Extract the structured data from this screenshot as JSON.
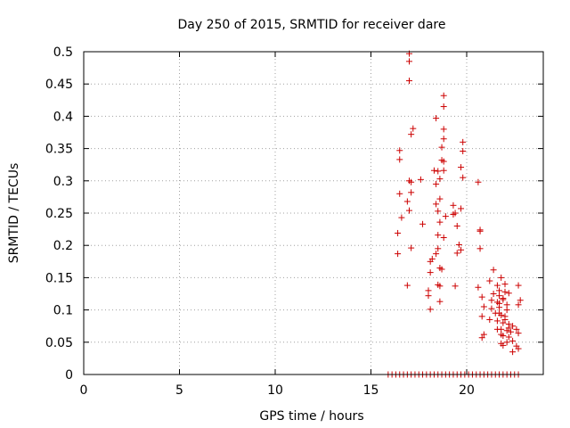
{
  "chart_data": {
    "type": "scatter",
    "title": "Day 250 of 2015, SRMTID for receiver dare",
    "xlabel": "GPS time / hours",
    "ylabel": "SRMTID / TECUs",
    "xlim": [
      0,
      24
    ],
    "ylim": [
      0,
      0.5
    ],
    "grid": true,
    "marker": "plus",
    "series": [
      {
        "name": "SRMTID",
        "color": "#cc0000",
        "points": [
          [
            17.0,
            0.497
          ],
          [
            17.0,
            0.485
          ],
          [
            17.0,
            0.455
          ],
          [
            18.8,
            0.432
          ],
          [
            18.8,
            0.415
          ],
          [
            18.4,
            0.397
          ],
          [
            17.2,
            0.381
          ],
          [
            17.1,
            0.372
          ],
          [
            18.8,
            0.38
          ],
          [
            18.8,
            0.365
          ],
          [
            18.7,
            0.352
          ],
          [
            19.8,
            0.36
          ],
          [
            19.8,
            0.346
          ],
          [
            16.5,
            0.347
          ],
          [
            16.5,
            0.333
          ],
          [
            18.7,
            0.332
          ],
          [
            18.8,
            0.33
          ],
          [
            19.7,
            0.321
          ],
          [
            18.3,
            0.316
          ],
          [
            18.5,
            0.315
          ],
          [
            18.8,
            0.316
          ],
          [
            17.6,
            0.302
          ],
          [
            18.6,
            0.303
          ],
          [
            19.8,
            0.305
          ],
          [
            20.6,
            0.298
          ],
          [
            17.0,
            0.3
          ],
          [
            17.1,
            0.298
          ],
          [
            18.4,
            0.295
          ],
          [
            16.5,
            0.28
          ],
          [
            17.1,
            0.282
          ],
          [
            18.6,
            0.272
          ],
          [
            16.9,
            0.268
          ],
          [
            18.4,
            0.264
          ],
          [
            19.3,
            0.262
          ],
          [
            19.7,
            0.257
          ],
          [
            16.6,
            0.243
          ],
          [
            17.0,
            0.254
          ],
          [
            18.5,
            0.253
          ],
          [
            18.9,
            0.245
          ],
          [
            19.3,
            0.248
          ],
          [
            19.4,
            0.25
          ],
          [
            17.7,
            0.233
          ],
          [
            18.6,
            0.236
          ],
          [
            19.5,
            0.23
          ],
          [
            20.7,
            0.224
          ],
          [
            20.7,
            0.222
          ],
          [
            16.4,
            0.219
          ],
          [
            18.5,
            0.216
          ],
          [
            18.8,
            0.212
          ],
          [
            17.1,
            0.196
          ],
          [
            18.5,
            0.195
          ],
          [
            19.6,
            0.201
          ],
          [
            19.7,
            0.193
          ],
          [
            20.7,
            0.195
          ],
          [
            18.2,
            0.179
          ],
          [
            18.4,
            0.187
          ],
          [
            19.5,
            0.188
          ],
          [
            16.4,
            0.187
          ],
          [
            18.1,
            0.175
          ],
          [
            18.6,
            0.165
          ],
          [
            18.7,
            0.163
          ],
          [
            18.1,
            0.158
          ],
          [
            21.4,
            0.162
          ],
          [
            21.8,
            0.15
          ],
          [
            21.2,
            0.145
          ],
          [
            18.5,
            0.139
          ],
          [
            18.6,
            0.137
          ],
          [
            16.9,
            0.138
          ],
          [
            19.4,
            0.137
          ],
          [
            20.6,
            0.135
          ],
          [
            22.7,
            0.138
          ],
          [
            18.0,
            0.13
          ],
          [
            18.0,
            0.122
          ],
          [
            20.8,
            0.12
          ],
          [
            21.4,
            0.125
          ],
          [
            21.7,
            0.122
          ],
          [
            22.0,
            0.128
          ],
          [
            22.2,
            0.126
          ],
          [
            18.6,
            0.113
          ],
          [
            21.3,
            0.115
          ],
          [
            21.6,
            0.112
          ],
          [
            21.9,
            0.116
          ],
          [
            22.8,
            0.115
          ],
          [
            22.7,
            0.108
          ],
          [
            18.1,
            0.101
          ],
          [
            20.9,
            0.105
          ],
          [
            21.3,
            0.102
          ],
          [
            21.7,
            0.104
          ],
          [
            22.1,
            0.1
          ],
          [
            21.5,
            0.095
          ],
          [
            21.8,
            0.092
          ],
          [
            22.0,
            0.09
          ],
          [
            20.8,
            0.09
          ],
          [
            21.2,
            0.085
          ],
          [
            21.6,
            0.083
          ],
          [
            21.9,
            0.08
          ],
          [
            22.2,
            0.078
          ],
          [
            22.4,
            0.075
          ],
          [
            21.8,
            0.07
          ],
          [
            22.1,
            0.068
          ],
          [
            22.3,
            0.066
          ],
          [
            22.6,
            0.07
          ],
          [
            22.7,
            0.064
          ],
          [
            21.9,
            0.06
          ],
          [
            22.2,
            0.058
          ],
          [
            20.8,
            0.057
          ],
          [
            20.9,
            0.062
          ],
          [
            22.1,
            0.05
          ],
          [
            22.4,
            0.052
          ],
          [
            21.9,
            0.045
          ],
          [
            22.6,
            0.044
          ],
          [
            22.7,
            0.04
          ],
          [
            21.8,
            0.048
          ],
          [
            22.4,
            0.035
          ],
          [
            21.7,
            0.11
          ],
          [
            21.7,
            0.095
          ],
          [
            22.1,
            0.108
          ],
          [
            21.9,
            0.118
          ],
          [
            22.0,
            0.085
          ],
          [
            21.6,
            0.07
          ],
          [
            21.8,
            0.062
          ],
          [
            22.2,
            0.072
          ],
          [
            21.6,
            0.138
          ],
          [
            22.0,
            0.14
          ],
          [
            21.7,
            0.13
          ],
          [
            15.9,
            0.0
          ],
          [
            16.1,
            0.0
          ],
          [
            16.3,
            0.0
          ],
          [
            16.5,
            0.0
          ],
          [
            16.7,
            0.0
          ],
          [
            16.9,
            0.0
          ],
          [
            17.1,
            0.0
          ],
          [
            17.3,
            0.0
          ],
          [
            17.5,
            0.0
          ],
          [
            17.7,
            0.0
          ],
          [
            17.9,
            0.0
          ],
          [
            18.1,
            0.0
          ],
          [
            18.3,
            0.0
          ],
          [
            18.5,
            0.0
          ],
          [
            18.7,
            0.0
          ],
          [
            18.9,
            0.0
          ],
          [
            19.1,
            0.0
          ],
          [
            19.3,
            0.0
          ],
          [
            19.5,
            0.0
          ],
          [
            19.7,
            0.0
          ],
          [
            19.9,
            0.0
          ],
          [
            20.1,
            0.0
          ],
          [
            20.3,
            0.0
          ],
          [
            20.5,
            0.0
          ],
          [
            20.7,
            0.0
          ],
          [
            20.9,
            0.0
          ],
          [
            21.1,
            0.0
          ],
          [
            21.3,
            0.0
          ],
          [
            21.5,
            0.0
          ],
          [
            21.7,
            0.0
          ],
          [
            21.9,
            0.0
          ],
          [
            22.1,
            0.0
          ],
          [
            22.3,
            0.0
          ],
          [
            22.5,
            0.0
          ],
          [
            22.7,
            0.0
          ]
        ]
      }
    ],
    "xticks": [
      0,
      5,
      10,
      15,
      20
    ],
    "xtick_labels": [
      "0",
      "5",
      "10",
      "15",
      "20"
    ],
    "yticks": [
      0,
      0.05,
      0.1,
      0.15,
      0.2,
      0.25,
      0.3,
      0.35,
      0.4,
      0.45,
      0.5
    ],
    "ytick_labels": [
      "0",
      "0.05",
      "0.1",
      "0.15",
      "0.2",
      "0.25",
      "0.3",
      "0.35",
      "0.4",
      "0.45",
      "0.5"
    ]
  }
}
